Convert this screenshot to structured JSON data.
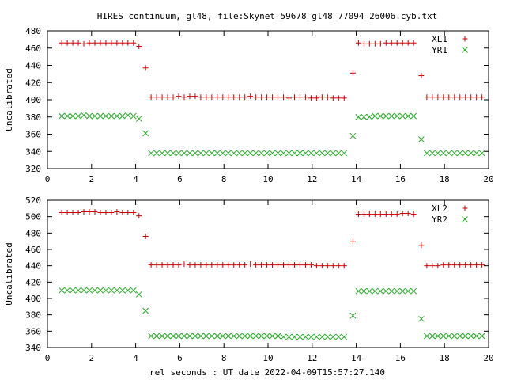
{
  "title": "HIRES continuum, gl48, file:Skynet_59678_gl48_77094_26006.cyb.txt",
  "xlabel": "rel seconds : UT date 2022-04-09T15:57:27.140",
  "colors": {
    "red": "#cc0000",
    "green": "#22aa22"
  },
  "chart_data": [
    {
      "type": "scatter",
      "ylabel": "Uncalibrated",
      "xlim": [
        0,
        20
      ],
      "ylim": [
        320,
        480
      ],
      "xticks": [
        0,
        2,
        4,
        6,
        8,
        10,
        12,
        14,
        16,
        18,
        20
      ],
      "yticks": [
        320,
        340,
        360,
        380,
        400,
        420,
        440,
        460,
        480
      ],
      "legend": "top-right",
      "series": [
        {
          "name": "XL1",
          "marker": "plus",
          "color": "#cc0000",
          "x": [
            0.65,
            0.9,
            1.15,
            1.4,
            1.65,
            1.9,
            2.15,
            2.4,
            2.65,
            2.9,
            3.15,
            3.4,
            3.65,
            3.9,
            4.15,
            4.45,
            4.7,
            4.95,
            5.2,
            5.45,
            5.7,
            5.95,
            6.2,
            6.45,
            6.7,
            6.95,
            7.2,
            7.45,
            7.7,
            7.95,
            8.2,
            8.45,
            8.7,
            8.95,
            9.2,
            9.45,
            9.7,
            9.95,
            10.2,
            10.45,
            10.7,
            10.95,
            11.2,
            11.45,
            11.7,
            11.95,
            12.2,
            12.45,
            12.7,
            12.95,
            13.2,
            13.45,
            13.85,
            14.1,
            14.35,
            14.6,
            14.85,
            15.1,
            15.35,
            15.6,
            15.85,
            16.1,
            16.35,
            16.6,
            16.95,
            17.2,
            17.45,
            17.7,
            17.95,
            18.2,
            18.45,
            18.7,
            18.95,
            19.2,
            19.45,
            19.7
          ],
          "y": [
            466,
            466,
            466,
            466,
            465,
            466,
            466,
            466,
            466,
            466,
            466,
            466,
            466,
            466,
            462,
            437,
            403,
            403,
            403,
            403,
            403,
            404,
            403,
            404,
            404,
            403,
            403,
            403,
            403,
            403,
            403,
            403,
            403,
            403,
            404,
            403,
            403,
            403,
            403,
            403,
            403,
            402,
            403,
            403,
            403,
            402,
            402,
            403,
            403,
            402,
            402,
            402,
            431,
            466,
            465,
            465,
            465,
            465,
            466,
            466,
            466,
            466,
            466,
            466,
            428,
            403,
            403,
            403,
            403,
            403,
            403,
            403,
            403,
            403,
            403,
            403
          ]
        },
        {
          "name": "YR1",
          "marker": "cross",
          "color": "#22aa22",
          "x": [
            0.65,
            0.9,
            1.15,
            1.4,
            1.65,
            1.9,
            2.15,
            2.4,
            2.65,
            2.9,
            3.15,
            3.4,
            3.65,
            3.9,
            4.15,
            4.45,
            4.7,
            4.95,
            5.2,
            5.45,
            5.7,
            5.95,
            6.2,
            6.45,
            6.7,
            6.95,
            7.2,
            7.45,
            7.7,
            7.95,
            8.2,
            8.45,
            8.7,
            8.95,
            9.2,
            9.45,
            9.7,
            9.95,
            10.2,
            10.45,
            10.7,
            10.95,
            11.2,
            11.45,
            11.7,
            11.95,
            12.2,
            12.45,
            12.7,
            12.95,
            13.2,
            13.45,
            13.85,
            14.1,
            14.35,
            14.6,
            14.85,
            15.1,
            15.35,
            15.6,
            15.85,
            16.1,
            16.35,
            16.6,
            16.95,
            17.2,
            17.45,
            17.7,
            17.95,
            18.2,
            18.45,
            18.7,
            18.95,
            19.2,
            19.45,
            19.7
          ],
          "y": [
            381,
            381,
            381,
            381,
            382,
            381,
            381,
            381,
            381,
            381,
            381,
            381,
            382,
            381,
            378,
            361,
            338,
            338,
            338,
            338,
            338,
            338,
            338,
            338,
            338,
            338,
            338,
            338,
            338,
            338,
            338,
            338,
            338,
            338,
            338,
            338,
            338,
            338,
            338,
            338,
            338,
            338,
            338,
            338,
            338,
            338,
            338,
            338,
            338,
            338,
            338,
            338,
            358,
            380,
            380,
            380,
            381,
            381,
            381,
            381,
            381,
            381,
            381,
            381,
            354,
            338,
            338,
            338,
            338,
            338,
            338,
            338,
            338,
            338,
            338,
            338
          ]
        }
      ]
    },
    {
      "type": "scatter",
      "ylabel": "Uncalibrated",
      "xlim": [
        0,
        20
      ],
      "ylim": [
        340,
        520
      ],
      "xticks": [
        0,
        2,
        4,
        6,
        8,
        10,
        12,
        14,
        16,
        18,
        20
      ],
      "yticks": [
        340,
        360,
        380,
        400,
        420,
        440,
        460,
        480,
        500,
        520
      ],
      "legend": "top-right",
      "series": [
        {
          "name": "XL2",
          "marker": "plus",
          "color": "#cc0000",
          "x": [
            0.65,
            0.9,
            1.15,
            1.4,
            1.65,
            1.9,
            2.15,
            2.4,
            2.65,
            2.9,
            3.15,
            3.4,
            3.65,
            3.9,
            4.15,
            4.45,
            4.7,
            4.95,
            5.2,
            5.45,
            5.7,
            5.95,
            6.2,
            6.45,
            6.7,
            6.95,
            7.2,
            7.45,
            7.7,
            7.95,
            8.2,
            8.45,
            8.7,
            8.95,
            9.2,
            9.45,
            9.7,
            9.95,
            10.2,
            10.45,
            10.7,
            10.95,
            11.2,
            11.45,
            11.7,
            11.95,
            12.2,
            12.45,
            12.7,
            12.95,
            13.2,
            13.45,
            13.85,
            14.1,
            14.35,
            14.6,
            14.85,
            15.1,
            15.35,
            15.6,
            15.85,
            16.1,
            16.35,
            16.6,
            16.95,
            17.2,
            17.45,
            17.7,
            17.95,
            18.2,
            18.45,
            18.7,
            18.95,
            19.2,
            19.45,
            19.7
          ],
          "y": [
            505,
            505,
            505,
            505,
            506,
            506,
            506,
            505,
            505,
            505,
            506,
            505,
            505,
            505,
            501,
            476,
            441,
            441,
            441,
            441,
            441,
            441,
            442,
            441,
            441,
            441,
            441,
            441,
            441,
            441,
            441,
            441,
            441,
            441,
            442,
            441,
            441,
            441,
            441,
            441,
            441,
            441,
            441,
            441,
            441,
            441,
            440,
            440,
            440,
            440,
            440,
            440,
            470,
            503,
            503,
            503,
            503,
            503,
            503,
            503,
            503,
            504,
            504,
            503,
            465,
            440,
            440,
            440,
            441,
            441,
            441,
            441,
            441,
            441,
            441,
            441
          ]
        },
        {
          "name": "YR2",
          "marker": "cross",
          "color": "#22aa22",
          "x": [
            0.65,
            0.9,
            1.15,
            1.4,
            1.65,
            1.9,
            2.15,
            2.4,
            2.65,
            2.9,
            3.15,
            3.4,
            3.65,
            3.9,
            4.15,
            4.45,
            4.7,
            4.95,
            5.2,
            5.45,
            5.7,
            5.95,
            6.2,
            6.45,
            6.7,
            6.95,
            7.2,
            7.45,
            7.7,
            7.95,
            8.2,
            8.45,
            8.7,
            8.95,
            9.2,
            9.45,
            9.7,
            9.95,
            10.2,
            10.45,
            10.7,
            10.95,
            11.2,
            11.45,
            11.7,
            11.95,
            12.2,
            12.45,
            12.7,
            12.95,
            13.2,
            13.45,
            13.85,
            14.1,
            14.35,
            14.6,
            14.85,
            15.1,
            15.35,
            15.6,
            15.85,
            16.1,
            16.35,
            16.6,
            16.95,
            17.2,
            17.45,
            17.7,
            17.95,
            18.2,
            18.45,
            18.7,
            18.95,
            19.2,
            19.45,
            19.7
          ],
          "y": [
            410,
            410,
            410,
            410,
            410,
            410,
            410,
            410,
            410,
            410,
            410,
            410,
            410,
            410,
            405,
            385,
            354,
            354,
            354,
            354,
            354,
            354,
            354,
            354,
            354,
            354,
            354,
            354,
            354,
            354,
            354,
            354,
            354,
            354,
            354,
            354,
            354,
            354,
            354,
            354,
            353,
            353,
            353,
            353,
            353,
            353,
            353,
            353,
            353,
            353,
            353,
            353,
            379,
            409,
            409,
            409,
            409,
            409,
            409,
            409,
            409,
            409,
            409,
            409,
            375,
            354,
            354,
            354,
            354,
            354,
            354,
            354,
            354,
            354,
            354,
            354
          ]
        }
      ]
    }
  ]
}
